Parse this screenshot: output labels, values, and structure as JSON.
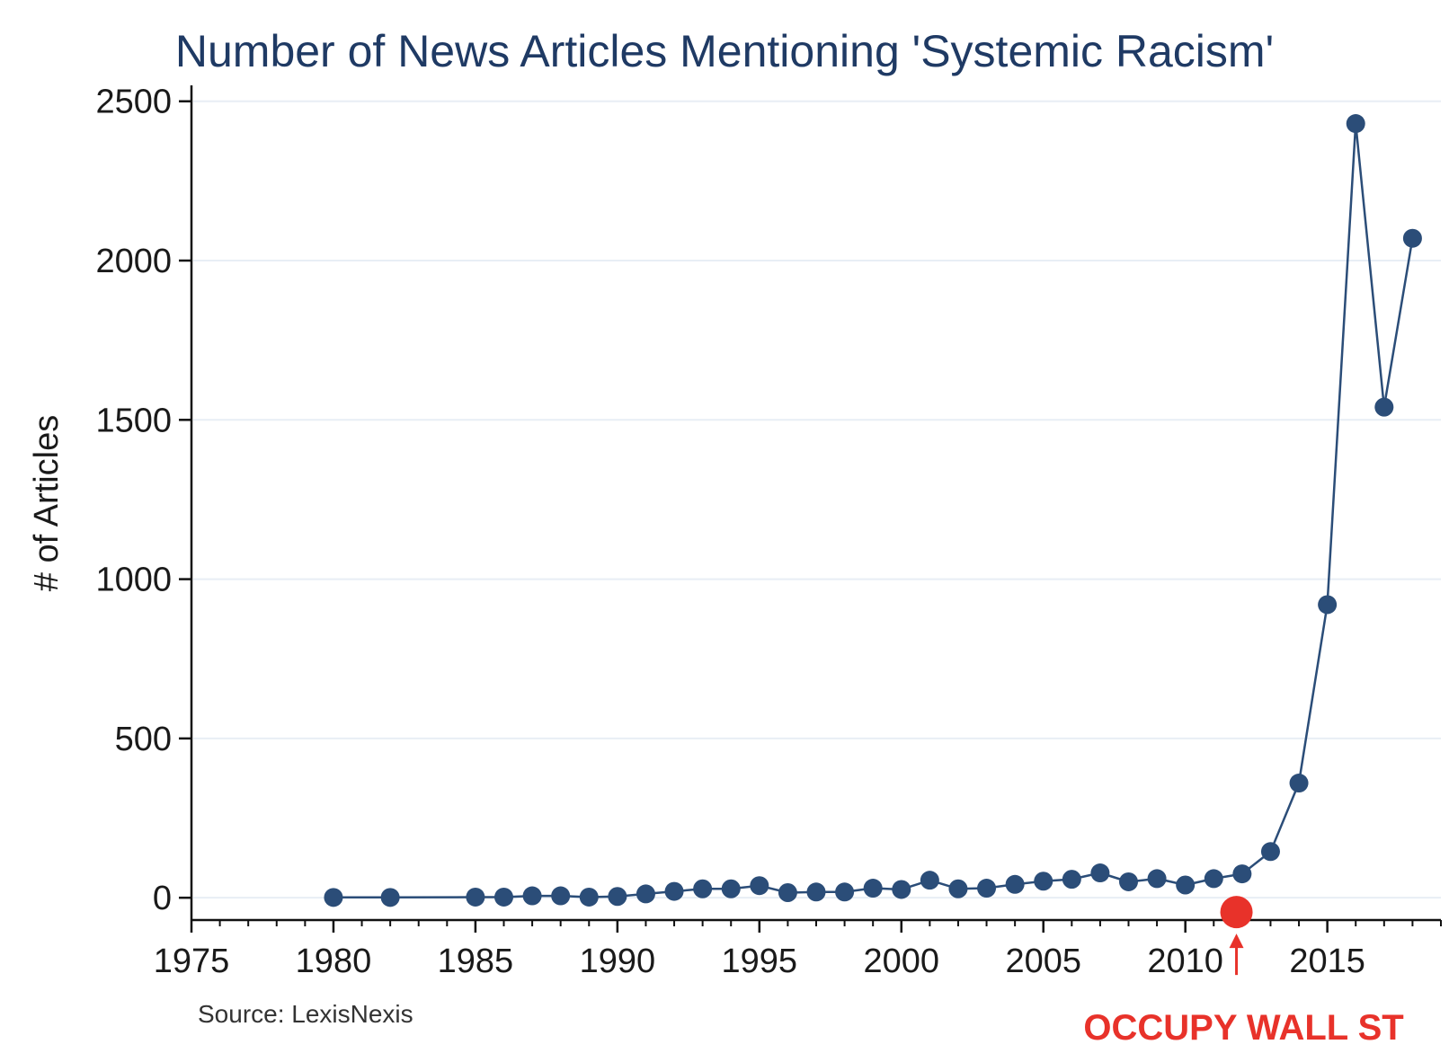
{
  "chart_data": {
    "type": "line",
    "title": "Number of News Articles Mentioning 'Systemic Racism'",
    "xlabel": "",
    "ylabel": "# of Articles",
    "xlim": [
      1975,
      2019
    ],
    "ylim": [
      -70,
      2550
    ],
    "x_ticks": [
      1975,
      1980,
      1985,
      1990,
      1995,
      2000,
      2005,
      2010,
      2015
    ],
    "y_ticks": [
      0,
      500,
      1000,
      1500,
      2000,
      2500
    ],
    "grid": "horizontal",
    "series_color": "#2b4d78",
    "annotation_color": "#e8322a",
    "x": [
      1980,
      1982,
      1985,
      1986,
      1987,
      1988,
      1989,
      1990,
      1991,
      1992,
      1993,
      1994,
      1995,
      1996,
      1997,
      1998,
      1999,
      2000,
      2001,
      2002,
      2003,
      2004,
      2005,
      2006,
      2007,
      2008,
      2009,
      2010,
      2011,
      2012,
      2013,
      2014,
      2015,
      2016,
      2017,
      2018
    ],
    "values": [
      1,
      1,
      2,
      2,
      6,
      6,
      2,
      4,
      12,
      20,
      28,
      28,
      38,
      16,
      18,
      18,
      30,
      26,
      55,
      28,
      30,
      42,
      52,
      58,
      78,
      50,
      60,
      40,
      60,
      75,
      145,
      360,
      920,
      2430,
      1540,
      2070
    ],
    "source": "Source: LexisNexis",
    "annotations": [
      {
        "label": "OCCUPY WALL ST",
        "x": 2011.8,
        "y": -45
      }
    ]
  }
}
